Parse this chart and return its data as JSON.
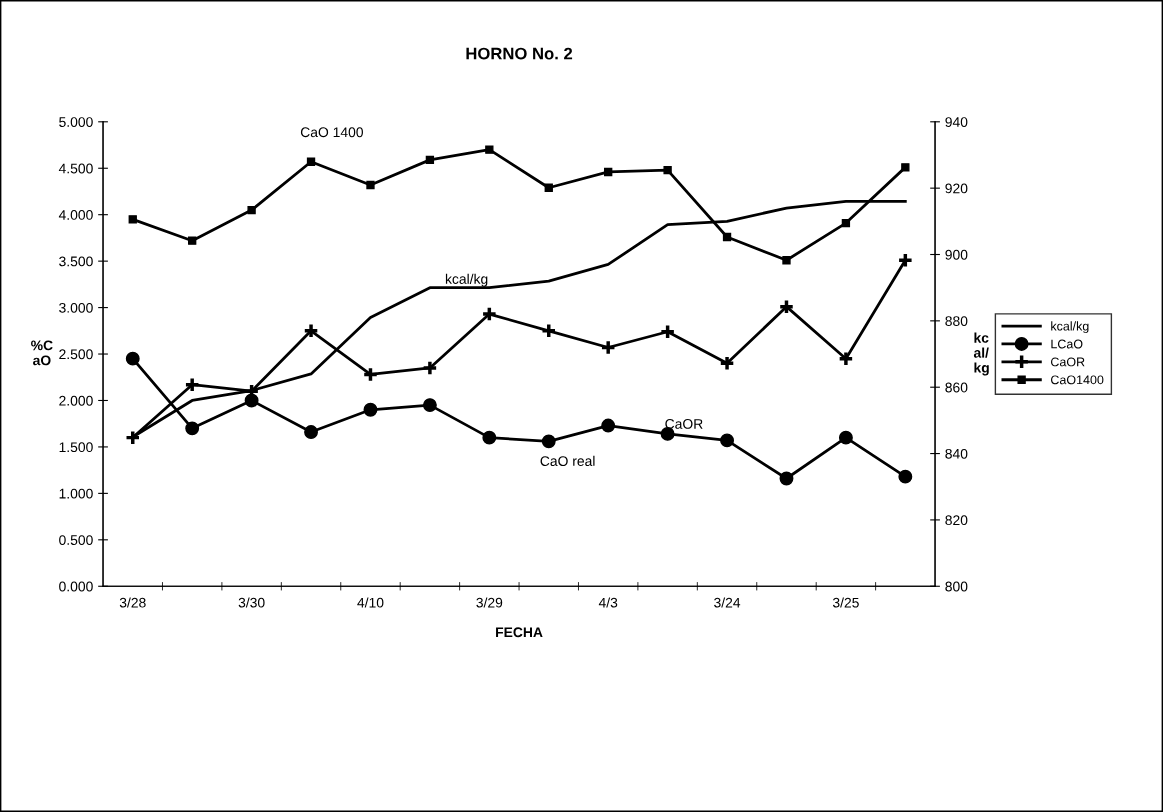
{
  "chart_data": {
    "type": "line",
    "title": "HORNO No. 2",
    "xlabel": "FECHA",
    "ylabel": "%C\naO",
    "y2label": "kc\nal/\nkg",
    "categories": [
      "3/28",
      null,
      "3/30",
      null,
      "4/10",
      null,
      "3/29",
      null,
      "4/3",
      null,
      "3/24",
      null,
      "3/25",
      null
    ],
    "series": [
      {
        "name": "kcal/kg",
        "color": "#000000",
        "axis": "y2",
        "marker": "none",
        "values": [
          845,
          856,
          859,
          864,
          881,
          890,
          890,
          892,
          897,
          909,
          910,
          914,
          916,
          916
        ]
      },
      {
        "name": "LCaO",
        "color": "#000000",
        "marker": "circle",
        "values": [
          2.45,
          1.7,
          2.0,
          1.66,
          1.9,
          1.95,
          1.6,
          1.56,
          1.73,
          1.64,
          1.57,
          1.16,
          1.6,
          1.18
        ]
      },
      {
        "name": "CaOR",
        "color": "#000000",
        "marker": "cross",
        "values": [
          1.6,
          2.17,
          2.1,
          2.75,
          2.28,
          2.35,
          2.93,
          2.75,
          2.57,
          2.74,
          2.4,
          3.01,
          2.45,
          3.51
        ]
      },
      {
        "name": "CaO1400",
        "color": "#000000",
        "marker": "square",
        "values": [
          3.95,
          3.72,
          4.05,
          4.57,
          4.32,
          4.59,
          4.7,
          4.29,
          4.46,
          4.48,
          3.76,
          3.51,
          3.91,
          4.51
        ]
      }
    ],
    "ylim": [
      0,
      5
    ],
    "yticks": [
      {
        "value": 0,
        "label": "0.000"
      },
      {
        "value": 0.5,
        "label": "0.500"
      },
      {
        "value": 1,
        "label": "1.000"
      },
      {
        "value": 1.5,
        "label": "1.500"
      },
      {
        "value": 2,
        "label": "2.000"
      },
      {
        "value": 2.5,
        "label": "2.500"
      },
      {
        "value": 3,
        "label": "3.000"
      },
      {
        "value": 3.5,
        "label": "3.500"
      },
      {
        "value": 4,
        "label": "4.000"
      },
      {
        "value": 4.5,
        "label": "4.500"
      },
      {
        "value": 5,
        "label": "5.000"
      }
    ],
    "y2lim": [
      800,
      940
    ],
    "y2ticks": [
      800,
      820,
      840,
      860,
      880,
      900,
      920,
      940
    ],
    "annotations": [
      "CaO 1400",
      "kcal/kg",
      "CaOR",
      "CaO real"
    ],
    "legend": "right",
    "grid": false,
    "line_style": "solid"
  }
}
